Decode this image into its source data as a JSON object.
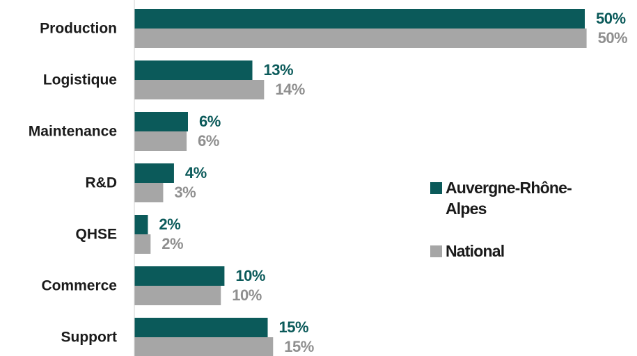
{
  "chart_data": {
    "type": "barh",
    "categories": [
      "Production",
      "Logistique",
      "Maintenance",
      "R&D",
      "QHSE",
      "Commerce",
      "Support"
    ],
    "series": [
      {
        "name": "Auvergne-Rhône-Alpes",
        "color": "#0b5a5a",
        "label_color": "#0b5a5a",
        "values": [
          50,
          13.1,
          5.95,
          4.4,
          1.5,
          10,
          14.8
        ],
        "value_labels": [
          "50%",
          "13%",
          "6%",
          "4%",
          "2%",
          "10%",
          "15%"
        ]
      },
      {
        "name": "National",
        "color": "#a6a6a6",
        "label_color": "#8f8f8f",
        "values": [
          50.2,
          14.4,
          5.8,
          3.2,
          1.8,
          9.6,
          15.4
        ],
        "value_labels": [
          "50%",
          "14%",
          "6%",
          "3%",
          "2%",
          "10%",
          "15%"
        ]
      }
    ],
    "xlim": [
      0,
      50
    ]
  }
}
